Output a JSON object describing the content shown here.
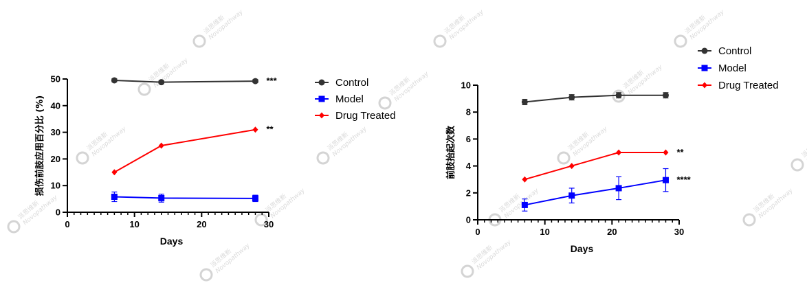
{
  "chart_data": [
    {
      "type": "line",
      "xlabel": "Days",
      "ylabel": "损伤前肢应用百分比 (%)",
      "xlim": [
        0,
        30
      ],
      "ylim": [
        0,
        50
      ],
      "xticks": [
        0,
        10,
        20,
        30
      ],
      "yticks": [
        0,
        10,
        20,
        30,
        40,
        50
      ],
      "x_minor_step": 1,
      "legend_position": "right",
      "series": [
        {
          "name": "Control",
          "color": "#333333",
          "marker": "circle",
          "x": [
            7,
            14,
            28
          ],
          "y": [
            49.5,
            48.8,
            49.2
          ],
          "err": [
            0.6,
            0.6,
            0.6
          ],
          "significance": "***"
        },
        {
          "name": "Model",
          "color": "#0000ff",
          "marker": "square",
          "x": [
            7,
            14,
            28
          ],
          "y": [
            5.8,
            5.3,
            5.2
          ],
          "err": [
            1.8,
            1.5,
            1.2
          ],
          "significance": ""
        },
        {
          "name": "Drug Treated",
          "color": "#ff0000",
          "marker": "diamond",
          "x": [
            7,
            14,
            28
          ],
          "y": [
            15,
            25,
            31
          ],
          "err": [
            0,
            0,
            0
          ],
          "significance": "**"
        }
      ]
    },
    {
      "type": "line",
      "xlabel": "Days",
      "ylabel": "前肢抬起次数",
      "xlim": [
        0,
        30
      ],
      "ylim": [
        0,
        10
      ],
      "xticks": [
        0,
        10,
        20,
        30
      ],
      "yticks": [
        0,
        2,
        4,
        6,
        8,
        10
      ],
      "x_minor_step": 1,
      "legend_position": "top-right",
      "series": [
        {
          "name": "Control",
          "color": "#333333",
          "marker": "circle",
          "x": [
            7,
            14,
            21,
            28
          ],
          "y": [
            8.75,
            9.1,
            9.25,
            9.25
          ],
          "err": [
            0.2,
            0.2,
            0.2,
            0.2
          ],
          "significance": ""
        },
        {
          "name": "Model",
          "color": "#0000ff",
          "marker": "square",
          "x": [
            7,
            14,
            21,
            28
          ],
          "y": [
            1.1,
            1.8,
            2.35,
            2.95
          ],
          "err": [
            0.45,
            0.55,
            0.85,
            0.85
          ],
          "significance": "****"
        },
        {
          "name": "Drug Treated",
          "color": "#ff0000",
          "marker": "diamond",
          "x": [
            7,
            14,
            21,
            28
          ],
          "y": [
            3,
            4,
            5,
            5
          ],
          "err": [
            0,
            0,
            0,
            0
          ],
          "significance": "**"
        }
      ]
    }
  ],
  "watermark": {
    "line1": "派思维新",
    "line2": "Novopathway"
  }
}
